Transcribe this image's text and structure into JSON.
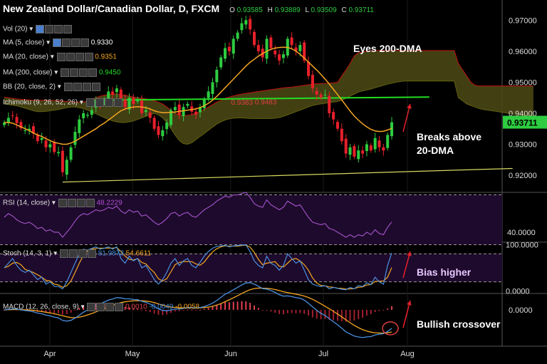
{
  "title": "New Zealand Dollar/Canadian Dollar, D, FXCM",
  "ohlc": {
    "o_label": "O",
    "o": "0.93585",
    "h_label": "H",
    "h": "0.93889",
    "l_label": "L",
    "l": "0.93509",
    "c_label": "C",
    "c": "0.93711"
  },
  "indicators": {
    "vol": "Vol (20)",
    "ma5": "MA (5, close)",
    "ma5_value": "0.9330",
    "ma20": "MA (20, close)",
    "ma20_value": "0.9351",
    "ma200": "MA (200, close)",
    "ma200_value": "0.9450",
    "bb": "BB (20, close, 2)",
    "ichimoku": "Ichimoku (9, 26, 52, 26)",
    "ichi_v1": "0.9383",
    "ichi_v2": "0.9483",
    "rsi": "RSI (14, close)",
    "rsi_value": "48.2229",
    "stoch": "Stoch (14, 3, 1)",
    "stoch_k": "81.9873",
    "stoch_d": "54.6611",
    "macd": "MACD (12, 26, close, 9)",
    "macd_hist": "0.0010",
    "macd_line": "-0.0049",
    "macd_signal": "-0.0058"
  },
  "annotations": {
    "eyes": "Eyes 200-DMA",
    "breaks1": "Breaks above",
    "breaks2": "20-DMA",
    "bias": "Bias higher",
    "crossover": "Bullish crossover"
  },
  "price_badge": "0.93711",
  "colors": {
    "up": "#2ecc40",
    "down": "#e8202a",
    "ma20": "#f5a623",
    "ma200": "#22dd22",
    "cloud": "#4d4a15",
    "trend": "#d8d860"
  },
  "chart_data": {
    "type": "line",
    "price_axis": {
      "ylim": [
        0.9145,
        0.9765
      ],
      "ticks": [
        "0.97000",
        "0.96000",
        "0.95000",
        "0.94000",
        "0.93000",
        "0.92000"
      ]
    },
    "rsi_axis": {
      "ylim": [
        32,
        72
      ],
      "ticks": [
        "40.0000"
      ]
    },
    "stoch_axis": {
      "ylim": [
        -5,
        105
      ],
      "ticks": [
        "100.0000",
        "0.0000"
      ]
    },
    "macd_axis": {
      "ylim": [
        -0.01,
        0.0045
      ],
      "ticks": [
        "0.0000"
      ]
    },
    "x_labels": [
      "Apr",
      "May",
      "Jun",
      "Jul",
      "Aug"
    ],
    "close": [
      0.937,
      0.9385,
      0.9392,
      0.9368,
      0.9352,
      0.9345,
      0.935,
      0.9335,
      0.931,
      0.932,
      0.929,
      0.93,
      0.9275,
      0.9275,
      0.921,
      0.925,
      0.929,
      0.934,
      0.938,
      0.94,
      0.9395,
      0.941,
      0.944,
      0.943,
      0.9445,
      0.947,
      0.946,
      0.948,
      0.944,
      0.942,
      0.945,
      0.943,
      0.9445,
      0.94,
      0.941,
      0.9385,
      0.935,
      0.933,
      0.9345,
      0.937,
      0.941,
      0.942,
      0.9395,
      0.942,
      0.943,
      0.9405,
      0.9395,
      0.942,
      0.9445,
      0.947,
      0.95,
      0.954,
      0.958,
      0.961,
      0.96,
      0.964,
      0.966,
      0.969,
      0.97,
      0.967,
      0.962,
      0.96,
      0.958,
      0.964,
      0.961,
      0.959,
      0.957,
      0.959,
      0.964,
      0.962,
      0.96,
      0.962,
      0.957,
      0.952,
      0.948,
      0.946,
      0.945,
      0.946,
      0.94,
      0.938,
      0.935,
      0.931,
      0.927,
      0.929,
      0.926,
      0.928,
      0.927,
      0.93,
      0.928,
      0.932,
      0.929,
      0.928,
      0.933,
      0.9371
    ],
    "ma20": [
      0.937,
      0.937,
      0.9368,
      0.9362,
      0.9356,
      0.935,
      0.9344,
      0.9336,
      0.933,
      0.9325,
      0.9318,
      0.9312,
      0.9306,
      0.9303,
      0.93,
      0.93,
      0.9304,
      0.931,
      0.9318,
      0.9326,
      0.9334,
      0.9342,
      0.935,
      0.936,
      0.9368,
      0.9378,
      0.9388,
      0.9398,
      0.9408,
      0.9414,
      0.9418,
      0.942,
      0.9421,
      0.942,
      0.9418,
      0.9414,
      0.9408,
      0.9404,
      0.9402,
      0.9402,
      0.9403,
      0.9404,
      0.9406,
      0.9408,
      0.941,
      0.9412,
      0.9414,
      0.9418,
      0.9424,
      0.9432,
      0.9442,
      0.9454,
      0.9468,
      0.9482,
      0.9496,
      0.951,
      0.9524,
      0.9538,
      0.9552,
      0.9564,
      0.9574,
      0.9584,
      0.9592,
      0.96,
      0.9606,
      0.961,
      0.9612,
      0.9613,
      0.9612,
      0.9608,
      0.96,
      0.959,
      0.9578,
      0.9565,
      0.9552,
      0.9539,
      0.9525,
      0.951,
      0.9494,
      0.9477,
      0.946,
      0.9443,
      0.9425,
      0.9407,
      0.9391,
      0.9378,
      0.9366,
      0.9356,
      0.9348,
      0.9343,
      0.9341,
      0.9342,
      0.9346,
      0.9351
    ],
    "ma200_segment": {
      "from_bar": 20,
      "to_bar": 102,
      "start": 0.9442,
      "end": 0.9452
    },
    "cloud": {
      "top": [
        0.9452,
        0.945,
        0.9448,
        0.9446,
        0.9445,
        0.9444,
        0.9443,
        0.9442,
        0.9442,
        0.9442,
        0.9442,
        0.9442,
        0.9441,
        0.944,
        0.9439,
        0.9438,
        0.9437,
        0.9436,
        0.9436,
        0.9436,
        0.944,
        0.9445,
        0.945,
        0.9455,
        0.9458,
        0.946,
        0.9462,
        0.9462,
        0.946,
        0.9458,
        0.9455,
        0.9452,
        0.945,
        0.9448,
        0.9446,
        0.9444,
        0.944,
        0.9435,
        0.943,
        0.942,
        0.941,
        0.94,
        0.9395,
        0.9392,
        0.9393,
        0.9396,
        0.94,
        0.9405,
        0.9412,
        0.942,
        0.9428,
        0.9436,
        0.9442,
        0.9448,
        0.9452,
        0.9456,
        0.9459,
        0.9462,
        0.9464,
        0.9466,
        0.9468,
        0.947,
        0.9472,
        0.9474,
        0.9476,
        0.9478,
        0.948,
        0.9482,
        0.9483,
        0.9484,
        0.9486,
        0.9488,
        0.949,
        0.9492,
        0.9494,
        0.9495,
        0.9496,
        0.9496,
        0.9497,
        0.9498,
        0.95,
        0.952,
        0.954,
        0.956,
        0.9585,
        0.9595,
        0.9598,
        0.96,
        0.9601,
        0.9602,
        0.9602,
        0.9602,
        0.9602,
        0.9602,
        0.9602,
        0.9602,
        0.9602,
        0.9602,
        0.9602,
        0.9602,
        0.9602,
        0.9602,
        0.9602,
        0.9602,
        0.9602,
        0.9602,
        0.9602,
        0.9602,
        0.9602,
        0.956,
        0.954,
        0.952,
        0.95,
        0.949,
        0.9488,
        0.9488,
        0.9488,
        0.9488,
        0.9488,
        0.9488,
        0.9488,
        0.9488,
        0.9488,
        0.9488,
        0.9488,
        0.9488,
        0.9488,
        0.9488
      ],
      "bottom": [
        0.943,
        0.9428,
        0.9426,
        0.9424,
        0.942,
        0.9416,
        0.9412,
        0.9408,
        0.9405,
        0.9405,
        0.9406,
        0.9408,
        0.941,
        0.9412,
        0.9415,
        0.9418,
        0.942,
        0.942,
        0.9418,
        0.9415,
        0.941,
        0.9404,
        0.9398,
        0.9392,
        0.9386,
        0.938,
        0.9375,
        0.9372,
        0.937,
        0.937,
        0.9372,
        0.9375,
        0.938,
        0.9385,
        0.939,
        0.9395,
        0.94,
        0.9395,
        0.9385,
        0.937,
        0.935,
        0.933,
        0.9312,
        0.9302,
        0.93,
        0.9305,
        0.9315,
        0.9325,
        0.9335,
        0.9345,
        0.9355,
        0.9365,
        0.9372,
        0.9378,
        0.9382,
        0.9384,
        0.9385,
        0.9385,
        0.9384,
        0.9383,
        0.9383,
        0.9383,
        0.9383,
        0.9383,
        0.9383,
        0.9384,
        0.9386,
        0.939,
        0.9395,
        0.94,
        0.9405,
        0.941,
        0.9415,
        0.942,
        0.9425,
        0.9428,
        0.943,
        0.9432,
        0.9434,
        0.9436,
        0.9438,
        0.9442,
        0.9448,
        0.9455,
        0.9462,
        0.9468,
        0.9472,
        0.9475,
        0.9478,
        0.9482,
        0.9486,
        0.949,
        0.9494,
        0.9497,
        0.95,
        0.9502,
        0.9504,
        0.9504,
        0.9504,
        0.9504,
        0.9504,
        0.9504,
        0.9504,
        0.9504,
        0.9504,
        0.9504,
        0.9504,
        0.9504,
        0.9504,
        0.945,
        0.944,
        0.943,
        0.9425,
        0.942,
        0.9415,
        0.9412,
        0.941,
        0.9408,
        0.9406,
        0.9404,
        0.9402,
        0.94,
        0.9398,
        0.9396,
        0.9394,
        0.9392,
        0.939,
        0.9388
      ]
    },
    "trendline": {
      "from": {
        "bar": 14,
        "value": 0.9178
      },
      "to": {
        "bar": 122,
        "value": 0.9222
      }
    },
    "rsi": [
      52,
      55,
      53,
      50,
      48,
      47,
      48,
      46,
      43,
      44,
      41,
      42,
      40,
      40,
      36,
      40,
      44,
      49,
      53,
      55,
      54,
      56,
      58,
      57,
      58,
      60,
      59,
      61,
      57,
      55,
      58,
      56,
      57,
      53,
      54,
      51,
      48,
      46,
      48,
      51,
      55,
      56,
      53,
      55,
      56,
      53,
      52,
      55,
      58,
      60,
      62,
      65,
      67,
      69,
      68,
      70,
      70,
      71,
      72,
      68,
      63,
      61,
      60,
      66,
      62,
      60,
      58,
      60,
      65,
      63,
      61,
      62,
      57,
      52,
      48,
      47,
      46,
      47,
      43,
      42,
      40,
      38,
      36,
      38,
      36,
      38,
      37,
      40,
      38,
      42,
      39,
      38,
      44,
      48.2
    ],
    "stoch_k": [
      50,
      60,
      70,
      55,
      45,
      40,
      45,
      35,
      25,
      30,
      15,
      20,
      10,
      10,
      5,
      20,
      40,
      60,
      80,
      90,
      88,
      92,
      95,
      90,
      92,
      95,
      90,
      95,
      70,
      60,
      75,
      65,
      70,
      50,
      55,
      40,
      25,
      15,
      25,
      40,
      60,
      70,
      55,
      65,
      70,
      55,
      50,
      62,
      75,
      85,
      92,
      96,
      97,
      98,
      95,
      97,
      98,
      99,
      99,
      85,
      65,
      55,
      50,
      75,
      60,
      55,
      45,
      55,
      80,
      70,
      60,
      65,
      45,
      25,
      15,
      12,
      10,
      12,
      5,
      8,
      6,
      4,
      3,
      8,
      5,
      12,
      10,
      18,
      14,
      30,
      20,
      15,
      55,
      82
    ]
  }
}
